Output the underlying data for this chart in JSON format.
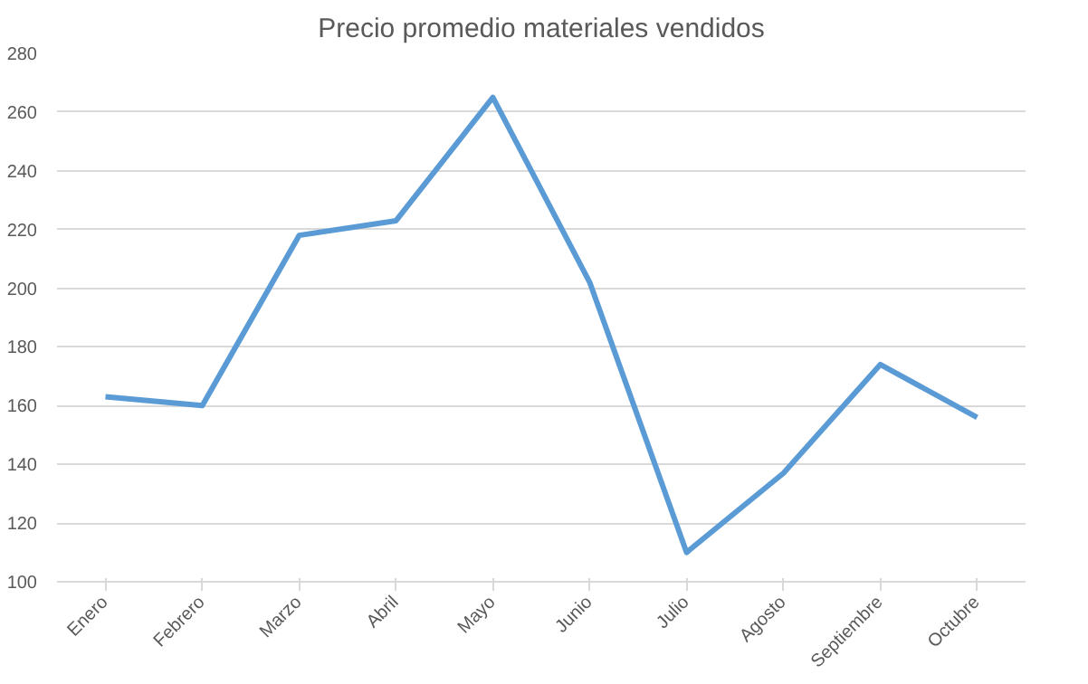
{
  "chart_data": {
    "type": "line",
    "title": "Precio promedio materiales vendidos",
    "categories": [
      "Enero",
      "Febrero",
      "Marzo",
      "Abril",
      "Mayo",
      "Junio",
      "Julio",
      "Agosto",
      "Septiembre",
      "Octubre"
    ],
    "series": [
      {
        "color": "#5b9bd5",
        "values": [
          163,
          160,
          218,
          223,
          265,
          202,
          110,
          137,
          174,
          156
        ]
      }
    ],
    "ylim": [
      100,
      280
    ],
    "yticks": [
      100,
      120,
      140,
      160,
      180,
      200,
      220,
      240,
      260,
      280
    ],
    "grid": "y",
    "marker": "none",
    "line_style": "solid"
  }
}
